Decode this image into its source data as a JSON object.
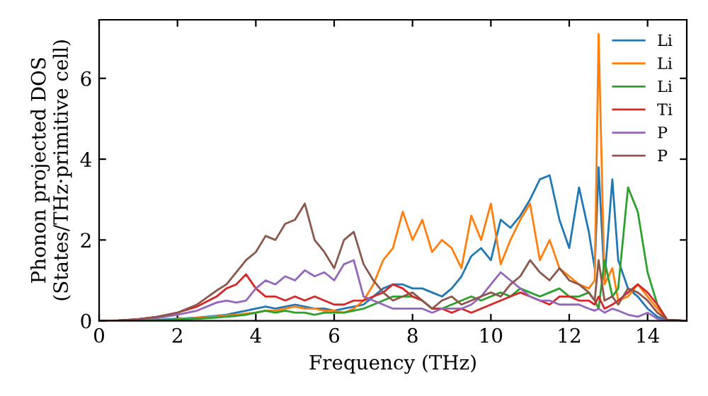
{
  "chart_data": {
    "type": "line",
    "xlabel": "Frequency (THz)",
    "ylabel": "Phonon projected DOS\n(States/THz·primitive cell)",
    "x": [
      0,
      0.5,
      1,
      1.5,
      2,
      2.5,
      3,
      3.25,
      3.5,
      3.75,
      4,
      4.25,
      4.5,
      4.75,
      5,
      5.25,
      5.5,
      5.75,
      6,
      6.25,
      6.5,
      6.75,
      7,
      7.25,
      7.5,
      7.75,
      8,
      8.25,
      8.5,
      8.75,
      9,
      9.25,
      9.5,
      9.75,
      10,
      10.25,
      10.5,
      10.75,
      11,
      11.25,
      11.5,
      11.75,
      12,
      12.25,
      12.5,
      12.65,
      12.75,
      12.9,
      13.1,
      13.25,
      13.5,
      13.75,
      14,
      14.25,
      14.5,
      15
    ],
    "xlim": [
      0,
      15
    ],
    "ylim": [
      0,
      7.45
    ],
    "xticks": [
      0,
      2,
      4,
      6,
      8,
      10,
      12,
      14
    ],
    "yticks": [
      0,
      2,
      4,
      6
    ],
    "legend": "top right",
    "grid": false,
    "line_style": "solid",
    "marker": "none",
    "series": [
      {
        "name": "Li",
        "color": "#1f77b4",
        "values": [
          null,
          null,
          null,
          0.02,
          0.05,
          0.08,
          0.12,
          0.15,
          0.2,
          0.25,
          0.3,
          0.35,
          0.3,
          0.35,
          0.4,
          0.35,
          0.3,
          0.3,
          0.25,
          0.3,
          0.35,
          0.4,
          0.6,
          0.8,
          0.9,
          0.9,
          0.8,
          0.8,
          0.7,
          0.6,
          0.8,
          1.1,
          1.6,
          1.8,
          1.5,
          2.5,
          2.3,
          2.6,
          3.0,
          3.5,
          3.6,
          2.5,
          1.8,
          3.3,
          2.2,
          1.3,
          3.8,
          1.0,
          3.5,
          1.5,
          0.8,
          0.6,
          0.3,
          0.1,
          0.01,
          0
        ]
      },
      {
        "name": "Li",
        "color": "#ff7f0e",
        "values": [
          null,
          null,
          null,
          null,
          0.04,
          0.07,
          0.1,
          0.13,
          0.15,
          0.18,
          0.2,
          0.25,
          0.25,
          0.3,
          0.35,
          0.3,
          0.3,
          0.25,
          0.25,
          0.2,
          0.3,
          0.5,
          0.9,
          1.5,
          1.8,
          2.7,
          2.0,
          2.5,
          1.7,
          2.0,
          1.8,
          1.3,
          2.6,
          2.0,
          2.9,
          1.4,
          2.0,
          2.5,
          2.9,
          1.5,
          2.0,
          1.3,
          1.1,
          0.9,
          0.8,
          1.0,
          7.1,
          0.9,
          1.3,
          0.5,
          0.6,
          0.9,
          0.6,
          0.3,
          0.02,
          0
        ]
      },
      {
        "name": "Li",
        "color": "#2ca02c",
        "values": [
          null,
          null,
          0.01,
          0.02,
          0.03,
          0.05,
          0.08,
          0.1,
          0.12,
          0.15,
          0.2,
          0.25,
          0.2,
          0.25,
          0.2,
          0.2,
          0.15,
          0.2,
          0.2,
          0.2,
          0.25,
          0.3,
          0.4,
          0.5,
          0.6,
          0.6,
          0.6,
          0.5,
          0.3,
          0.3,
          0.4,
          0.5,
          0.6,
          0.5,
          0.6,
          0.7,
          0.6,
          0.8,
          0.7,
          0.6,
          0.7,
          0.8,
          0.6,
          0.6,
          0.7,
          0.5,
          0.3,
          1.5,
          0.6,
          0.8,
          3.3,
          2.7,
          1.2,
          0.4,
          0.02,
          0
        ]
      },
      {
        "name": "Ti",
        "color": "#d62728",
        "values": [
          0,
          0.01,
          0.04,
          0.1,
          0.2,
          0.35,
          0.6,
          0.8,
          0.9,
          1.15,
          0.8,
          0.6,
          0.6,
          0.5,
          0.6,
          0.5,
          0.6,
          0.5,
          0.4,
          0.4,
          0.5,
          0.5,
          0.6,
          0.7,
          0.9,
          0.8,
          0.6,
          0.5,
          0.3,
          0.3,
          0.2,
          0.3,
          0.2,
          0.3,
          0.4,
          0.5,
          0.6,
          0.7,
          0.6,
          0.5,
          0.4,
          0.6,
          0.6,
          0.5,
          0.5,
          0.4,
          0.6,
          0.3,
          0.4,
          0.5,
          0.7,
          0.9,
          0.7,
          0.4,
          0.02,
          0
        ]
      },
      {
        "name": "P",
        "color": "#9467bd",
        "values": [
          0,
          0.01,
          0.03,
          0.07,
          0.15,
          0.25,
          0.45,
          0.5,
          0.45,
          0.5,
          0.8,
          1.0,
          0.9,
          1.1,
          1.0,
          1.25,
          1.1,
          1.2,
          1.0,
          1.4,
          1.5,
          0.6,
          0.5,
          0.4,
          0.3,
          0.3,
          0.3,
          0.3,
          0.2,
          0.3,
          0.3,
          0.3,
          0.4,
          0.6,
          0.9,
          1.2,
          1.0,
          0.8,
          0.6,
          0.5,
          0.5,
          0.4,
          0.4,
          0.4,
          0.3,
          0.25,
          0.3,
          0.2,
          0.3,
          0.25,
          0.15,
          0.1,
          0.2,
          0.05,
          0.01,
          0
        ]
      },
      {
        "name": "P",
        "color": "#8c564b",
        "values": [
          0,
          0.01,
          0.04,
          0.1,
          0.2,
          0.4,
          0.75,
          0.9,
          1.2,
          1.5,
          1.7,
          2.1,
          2.0,
          2.4,
          2.5,
          2.9,
          2.0,
          1.7,
          1.3,
          2.0,
          2.2,
          1.4,
          1.0,
          0.7,
          0.5,
          0.6,
          0.7,
          0.5,
          0.3,
          0.5,
          0.6,
          0.4,
          0.5,
          0.6,
          0.7,
          0.6,
          0.9,
          1.1,
          1.5,
          1.2,
          1.0,
          1.3,
          1.0,
          0.9,
          0.7,
          0.5,
          1.5,
          0.5,
          0.6,
          0.4,
          0.8,
          0.7,
          0.5,
          0.2,
          0.02,
          0
        ]
      }
    ]
  }
}
